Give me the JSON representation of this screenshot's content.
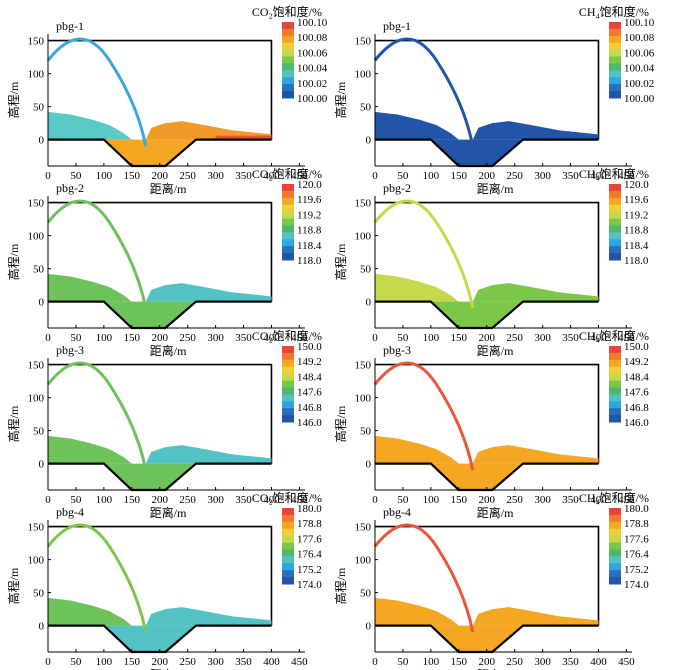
{
  "chart_data": [
    {
      "type": "heatmap",
      "title": "pbg-1",
      "colorbar_label": "CO₂饱和度/%",
      "colorbar_ticks": [
        "100.10",
        "100.08",
        "100.06",
        "100.04",
        "100.02",
        "100.00"
      ],
      "xlabel": "距离/m",
      "ylabel": "高程/m",
      "xticks": [
        0,
        50,
        100,
        150,
        200,
        250,
        300,
        350,
        400,
        450
      ],
      "yticks": [
        0,
        50,
        100,
        150
      ],
      "xlim": [
        0,
        460
      ],
      "ylim": [
        -40,
        160
      ],
      "region_colors": {
        "arc": "#3aa7dd",
        "left_mass": "#5bc9c6",
        "slope_mass": "#f09a2a",
        "pool": "#f6a623",
        "rim": "#e8443c"
      }
    },
    {
      "type": "heatmap",
      "title": "pbg-1",
      "colorbar_label": "CH₄饱和度/%",
      "colorbar_ticks": [
        "100.10",
        "100.08",
        "100.06",
        "100.04",
        "100.02",
        "100.00"
      ],
      "xlabel": "距离/m",
      "ylabel": "高程/m",
      "xticks": [
        0,
        50,
        100,
        150,
        200,
        250,
        300,
        350,
        400,
        450
      ],
      "yticks": [
        0,
        50,
        100,
        150
      ],
      "xlim": [
        0,
        460
      ],
      "ylim": [
        -40,
        160
      ],
      "region_colors": {
        "arc": "#2255a8",
        "left_mass": "#2255a8",
        "slope_mass": "#2255a8",
        "pool": "#2255a8",
        "rim": "#2255a8"
      }
    },
    {
      "type": "heatmap",
      "title": "pbg-2",
      "colorbar_label": "CO₂饱和度/%",
      "colorbar_ticks": [
        "120.0",
        "119.6",
        "119.2",
        "118.8",
        "118.4",
        "118.0"
      ],
      "xlabel": "距离/m",
      "ylabel": "高程/m",
      "xticks": [
        0,
        50,
        100,
        150,
        200,
        250,
        300,
        350,
        400,
        450
      ],
      "yticks": [
        0,
        50,
        100,
        150
      ],
      "xlim": [
        0,
        460
      ],
      "ylim": [
        -40,
        160
      ],
      "region_colors": {
        "arc": "#6ec25a",
        "left_mass": "#6ec25a",
        "slope_mass": "#52c2c5",
        "pool": "#6ec25a",
        "rim": "#52c2c5"
      }
    },
    {
      "type": "heatmap",
      "title": "pbg-2",
      "colorbar_label": "CH₄饱和度/%",
      "colorbar_ticks": [
        "120.0",
        "119.6",
        "119.2",
        "118.8",
        "118.4",
        "118.0"
      ],
      "xlabel": "距离/m",
      "ylabel": "高程/m",
      "xticks": [
        0,
        50,
        100,
        150,
        200,
        250,
        300,
        350,
        400,
        450
      ],
      "yticks": [
        0,
        50,
        100,
        150
      ],
      "xlim": [
        0,
        460
      ],
      "ylim": [
        -40,
        160
      ],
      "region_colors": {
        "arc": "#c5d94a",
        "left_mass": "#c5d94a",
        "slope_mass": "#7cc64a",
        "pool": "#7cc64a",
        "rim": "#7cc64a"
      }
    },
    {
      "type": "heatmap",
      "title": "pbg-3",
      "colorbar_label": "CO₂饱和度/%",
      "colorbar_ticks": [
        "150.0",
        "149.2",
        "148.4",
        "147.6",
        "146.8",
        "146.0"
      ],
      "xlabel": "距离/m",
      "ylabel": "高程/m",
      "xticks": [
        0,
        50,
        100,
        150,
        200,
        250,
        300,
        350,
        400,
        450
      ],
      "yticks": [
        0,
        50,
        100,
        150
      ],
      "xlim": [
        0,
        460
      ],
      "ylim": [
        -40,
        160
      ],
      "region_colors": {
        "arc": "#6ec25a",
        "left_mass": "#6ec25a",
        "slope_mass": "#52c2c5",
        "pool": "#6ec25a",
        "rim": "#52c2c5"
      }
    },
    {
      "type": "heatmap",
      "title": "pbg-3",
      "colorbar_label": "CH₄饱和度/%",
      "colorbar_ticks": [
        "150.0",
        "149.2",
        "148.4",
        "147.6",
        "146.8",
        "146.0"
      ],
      "xlabel": "距离/m",
      "ylabel": "高程/m",
      "xticks": [
        0,
        50,
        100,
        150,
        200,
        250,
        300,
        350,
        400,
        450
      ],
      "yticks": [
        0,
        50,
        100,
        150
      ],
      "xlim": [
        0,
        460
      ],
      "ylim": [
        -40,
        160
      ],
      "region_colors": {
        "arc": "#e8573c",
        "left_mass": "#f5a623",
        "slope_mass": "#f5a623",
        "pool": "#f5a623",
        "rim": "#f5a623"
      }
    },
    {
      "type": "heatmap",
      "title": "pbg-4",
      "colorbar_label": "CO₂饱和度/%",
      "colorbar_ticks": [
        "180.0",
        "178.8",
        "177.6",
        "176.4",
        "175.2",
        "174.0"
      ],
      "xlabel": "距离/m",
      "ylabel": "高程/m",
      "xticks": [
        0,
        50,
        100,
        150,
        200,
        250,
        300,
        350,
        400,
        450
      ],
      "yticks": [
        0,
        50,
        100,
        150
      ],
      "xlim": [
        0,
        460
      ],
      "ylim": [
        -40,
        160
      ],
      "region_colors": {
        "arc": "#7cc64a",
        "left_mass": "#6ec25a",
        "slope_mass": "#52c2c5",
        "pool": "#52c2c5",
        "rim": "#52c2c5"
      }
    },
    {
      "type": "heatmap",
      "title": "pbg-4",
      "colorbar_label": "CH₄饱和度/%",
      "colorbar_ticks": [
        "180.0",
        "178.8",
        "177.6",
        "176.4",
        "175.2",
        "174.0"
      ],
      "xlabel": "距离/m",
      "ylabel": "高程/m",
      "xticks": [
        0,
        50,
        100,
        150,
        200,
        250,
        300,
        350,
        400,
        450
      ],
      "yticks": [
        0,
        50,
        100,
        150
      ],
      "xlim": [
        0,
        460
      ],
      "ylim": [
        -40,
        160
      ],
      "region_colors": {
        "arc": "#e8573c",
        "left_mass": "#f5a623",
        "slope_mass": "#f5a623",
        "pool": "#f5a623",
        "rim": "#f5a623"
      }
    }
  ],
  "colorbar_palette": [
    "#e8443c",
    "#f0792e",
    "#f6a623",
    "#f2cf3a",
    "#c5d94a",
    "#7cc64a",
    "#4fb86a",
    "#52c2c5",
    "#2ea6de",
    "#2a6fbd",
    "#2255a8"
  ]
}
